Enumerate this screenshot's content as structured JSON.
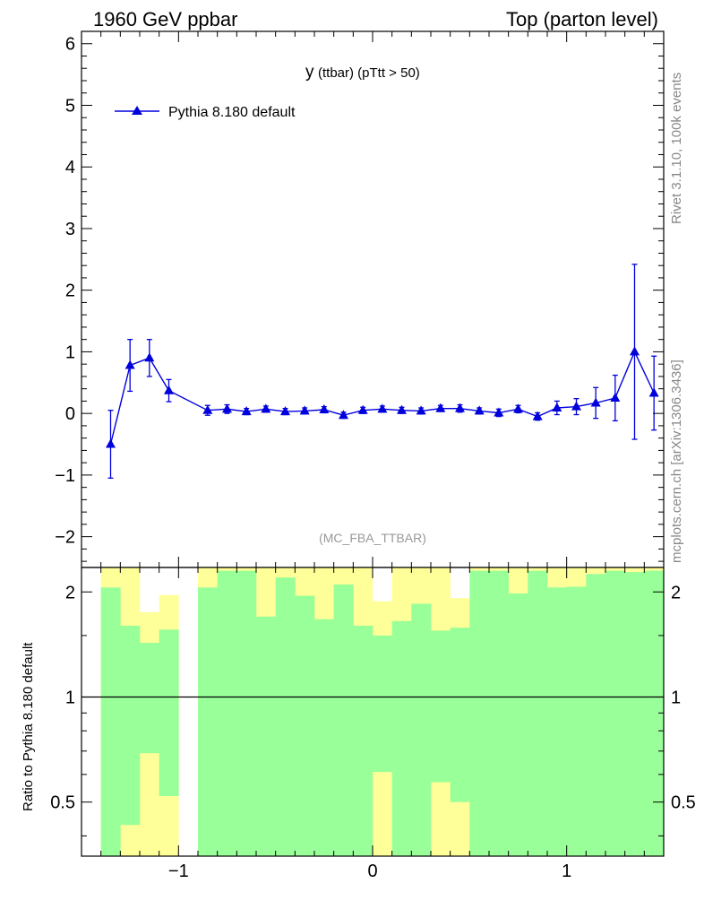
{
  "header": {
    "left_label": "1960 GeV ppbar",
    "right_label": "Top (parton level)"
  },
  "side_labels": {
    "top": "Rivet 3.1.10,  100k events",
    "bottom": "mcplots.cern.ch [arXiv:1306.3436]"
  },
  "chart_data": [
    {
      "type": "line",
      "panel": "main",
      "title_main": "y",
      "title_sub": "(ttbar)  (pTtt > 50)",
      "analysis_label": "(MC_FBA_TTBAR)",
      "legend": {
        "label": "Pythia 8.180 default",
        "marker": "triangle",
        "color": "#0000dd",
        "position": "top-left"
      },
      "xlim": [
        -1.5,
        1.5
      ],
      "ylim": [
        -2.5,
        6.2
      ],
      "yticks": [
        -2,
        -1,
        0,
        1,
        2,
        3,
        4,
        5,
        6
      ],
      "ytick_labels": [
        "−2",
        "−1",
        "0",
        "1",
        "2",
        "3",
        "4",
        "5",
        "6"
      ],
      "series": [
        {
          "name": "Pythia 8.180 default",
          "x": [
            -1.35,
            -1.25,
            -1.15,
            -1.05,
            -0.85,
            -0.75,
            -0.65,
            -0.55,
            -0.45,
            -0.35,
            -0.25,
            -0.15,
            -0.05,
            0.05,
            0.15,
            0.25,
            0.35,
            0.45,
            0.55,
            0.65,
            0.75,
            0.85,
            0.95,
            1.05,
            1.15,
            1.25,
            1.35,
            1.45
          ],
          "y": [
            -0.5,
            0.78,
            0.9,
            0.37,
            0.05,
            0.07,
            0.03,
            0.07,
            0.03,
            0.04,
            0.06,
            -0.03,
            0.05,
            0.07,
            0.05,
            0.04,
            0.08,
            0.08,
            0.04,
            0.01,
            0.07,
            -0.05,
            0.09,
            0.11,
            0.17,
            0.25,
            1.0,
            0.33
          ],
          "yerr": [
            0.55,
            0.42,
            0.3,
            0.18,
            0.08,
            0.07,
            0.05,
            0.05,
            0.05,
            0.05,
            0.05,
            0.05,
            0.05,
            0.05,
            0.05,
            0.05,
            0.05,
            0.06,
            0.05,
            0.06,
            0.06,
            0.06,
            0.11,
            0.13,
            0.25,
            0.37,
            1.42,
            0.6
          ]
        }
      ]
    },
    {
      "type": "ratio-bands",
      "panel": "ratio",
      "ylabel": "Ratio to Pythia 8.180 default",
      "xlim": [
        -1.5,
        1.5
      ],
      "ylim": [
        0.35,
        2.35
      ],
      "yscale": "log",
      "yticks": [
        0.5,
        1,
        2
      ],
      "ytick_labels": [
        "0.5",
        "1",
        "2"
      ],
      "xticks": [
        -1,
        0,
        1
      ],
      "xtick_labels": [
        "−1",
        "0",
        "1"
      ],
      "reference_line": 1,
      "bin_edges": [
        -1.4,
        -1.3,
        -1.2,
        -1.1,
        -1.0,
        -0.9,
        -0.8,
        -0.7,
        -0.6,
        -0.5,
        -0.4,
        -0.3,
        -0.2,
        -0.1,
        0.0,
        0.1,
        0.2,
        0.3,
        0.4,
        0.5,
        0.6,
        0.7,
        0.8,
        0.9,
        1.0,
        1.1,
        1.2,
        1.3,
        1.4,
        1.5
      ],
      "band_1sigma": [
        [
          0.35,
          2.06
        ],
        [
          0.43,
          1.6
        ],
        [
          0.69,
          1.43
        ],
        [
          0.52,
          1.56
        ],
        null,
        [
          0.35,
          2.06
        ],
        [
          0.35,
          2.3
        ],
        [
          0.35,
          2.3
        ],
        [
          0.35,
          1.7
        ],
        [
          0.35,
          2.2
        ],
        [
          0.35,
          1.95
        ],
        [
          0.35,
          1.67
        ],
        [
          0.35,
          2.1
        ],
        [
          0.35,
          1.6
        ],
        [
          0.61,
          1.5
        ],
        [
          0.35,
          1.65
        ],
        [
          0.35,
          1.85
        ],
        [
          0.57,
          1.55
        ],
        [
          0.5,
          1.58
        ],
        [
          0.35,
          2.3
        ],
        [
          0.35,
          2.3
        ],
        [
          0.35,
          1.98
        ],
        [
          0.35,
          2.3
        ],
        [
          0.35,
          2.06
        ],
        [
          0.35,
          2.07
        ],
        [
          0.35,
          2.25
        ],
        [
          0.35,
          2.3
        ],
        [
          0.35,
          2.28
        ],
        [
          0.35,
          2.3
        ]
      ],
      "band_2sigma": [
        [
          0.35,
          2.35
        ],
        [
          0.35,
          2.35
        ],
        [
          0.35,
          1.75
        ],
        [
          0.35,
          1.96
        ],
        null,
        [
          0.35,
          2.35
        ],
        [
          0.35,
          2.35
        ],
        [
          0.35,
          2.35
        ],
        [
          0.35,
          2.35
        ],
        [
          0.35,
          2.35
        ],
        [
          0.35,
          2.35
        ],
        [
          0.35,
          2.35
        ],
        [
          0.35,
          2.35
        ],
        [
          0.35,
          2.35
        ],
        [
          0.35,
          1.88
        ],
        [
          0.35,
          2.35
        ],
        [
          0.35,
          2.35
        ],
        [
          0.35,
          2.35
        ],
        [
          0.35,
          1.92
        ],
        [
          0.35,
          2.35
        ],
        [
          0.35,
          2.35
        ],
        [
          0.35,
          2.35
        ],
        [
          0.35,
          2.35
        ],
        [
          0.35,
          2.35
        ],
        [
          0.35,
          2.35
        ],
        [
          0.35,
          2.35
        ],
        [
          0.35,
          2.35
        ],
        [
          0.35,
          2.35
        ],
        [
          0.35,
          2.35
        ]
      ],
      "colors": {
        "inner": "#99ff99",
        "outer": "#ffff99"
      }
    }
  ],
  "colors": {
    "series": "#0000dd",
    "text": "#000000",
    "side_text": "#888888"
  }
}
